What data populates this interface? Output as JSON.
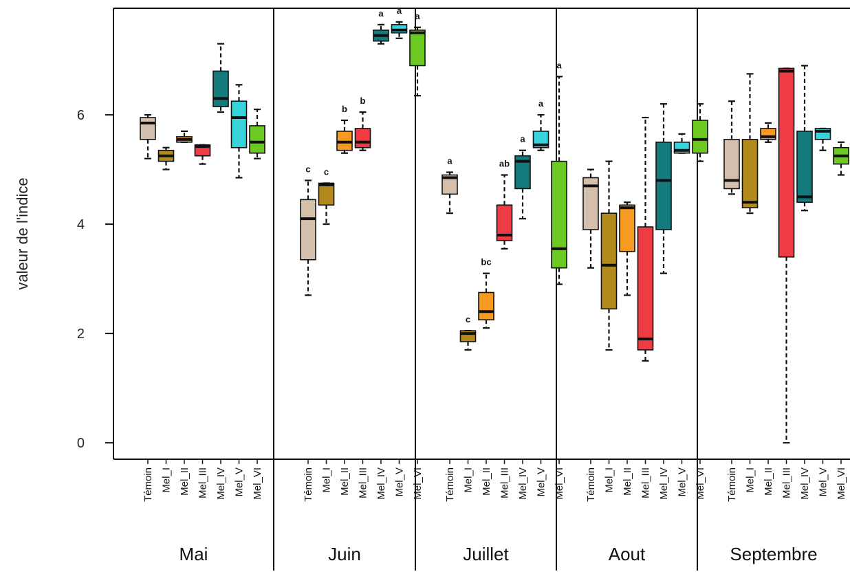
{
  "chart_data": {
    "type": "boxplot",
    "ylabel": "valeur de l'indice",
    "yticks": [
      0,
      2,
      4,
      6
    ],
    "ylim": [
      -0.3,
      7.95
    ],
    "categories": [
      "Témoin",
      "Mel_I",
      "Mel_II",
      "Mel_III",
      "Mel_IV",
      "Mel_V",
      "Mel_VI"
    ],
    "colors": {
      "Témoin": "#d3bfab",
      "Mel_I": "#b28a1e",
      "Mel_II": "#f79a22",
      "Mel_III": "#ef3b43",
      "Mel_IV": "#157a7c",
      "Mel_V": "#37d4dc",
      "Mel_VI": "#6cc922"
    },
    "panels": [
      {
        "month": "Mai",
        "boxes": [
          {
            "category": "Témoin",
            "whisker_low": 5.2,
            "q1": 5.55,
            "median": 5.85,
            "q3": 5.95,
            "whisker_high": 6.0,
            "letter": ""
          },
          {
            "category": "Mel_I",
            "whisker_low": 5.0,
            "q1": 5.15,
            "median": 5.25,
            "q3": 5.35,
            "whisker_high": 5.4,
            "letter": ""
          },
          {
            "category": "Mel_II",
            "whisker_low": 5.5,
            "q1": 5.5,
            "median": 5.55,
            "q3": 5.6,
            "whisker_high": 5.7,
            "letter": ""
          },
          {
            "category": "Mel_III",
            "whisker_low": 5.1,
            "q1": 5.25,
            "median": 5.42,
            "q3": 5.45,
            "whisker_high": 5.45,
            "letter": ""
          },
          {
            "category": "Mel_IV",
            "whisker_low": 6.05,
            "q1": 6.15,
            "median": 6.3,
            "q3": 6.8,
            "whisker_high": 7.3,
            "letter": ""
          },
          {
            "category": "Mel_V",
            "whisker_low": 4.85,
            "q1": 5.4,
            "median": 5.95,
            "q3": 6.25,
            "whisker_high": 6.55,
            "letter": ""
          },
          {
            "category": "Mel_VI",
            "whisker_low": 5.2,
            "q1": 5.3,
            "median": 5.5,
            "q3": 5.8,
            "whisker_high": 6.1,
            "letter": ""
          }
        ]
      },
      {
        "month": "Juin",
        "boxes": [
          {
            "category": "Témoin",
            "whisker_low": 2.7,
            "q1": 3.35,
            "median": 4.1,
            "q3": 4.45,
            "whisker_high": 4.8,
            "letter": "c"
          },
          {
            "category": "Mel_I",
            "whisker_low": 4.0,
            "q1": 4.35,
            "median": 4.72,
            "q3": 4.75,
            "whisker_high": 4.75,
            "letter": "c"
          },
          {
            "category": "Mel_II",
            "whisker_low": 5.3,
            "q1": 5.35,
            "median": 5.5,
            "q3": 5.7,
            "whisker_high": 5.9,
            "letter": "b"
          },
          {
            "category": "Mel_III",
            "whisker_low": 5.35,
            "q1": 5.4,
            "median": 5.5,
            "q3": 5.75,
            "whisker_high": 6.05,
            "letter": "b"
          },
          {
            "category": "Mel_IV",
            "whisker_low": 7.3,
            "q1": 7.35,
            "median": 7.45,
            "q3": 7.55,
            "whisker_high": 7.65,
            "letter": "a"
          },
          {
            "category": "Mel_V",
            "whisker_low": 7.4,
            "q1": 7.5,
            "median": 7.55,
            "q3": 7.65,
            "whisker_high": 7.7,
            "letter": "a"
          },
          {
            "category": "Mel_VI",
            "whisker_low": 6.35,
            "q1": 6.9,
            "median": 7.5,
            "q3": 7.55,
            "whisker_high": 7.6,
            "letter": "a"
          }
        ]
      },
      {
        "month": "Juillet",
        "boxes": [
          {
            "category": "Témoin",
            "whisker_low": 4.2,
            "q1": 4.55,
            "median": 4.85,
            "q3": 4.9,
            "whisker_high": 4.95,
            "letter": "a"
          },
          {
            "category": "Mel_I",
            "whisker_low": 1.7,
            "q1": 1.85,
            "median": 2.0,
            "q3": 2.05,
            "whisker_high": 2.05,
            "letter": "c"
          },
          {
            "category": "Mel_II",
            "whisker_low": 2.1,
            "q1": 2.25,
            "median": 2.4,
            "q3": 2.75,
            "whisker_high": 3.1,
            "letter": "bc"
          },
          {
            "category": "Mel_III",
            "whisker_low": 3.55,
            "q1": 3.7,
            "median": 3.8,
            "q3": 4.35,
            "whisker_high": 4.9,
            "letter": "ab"
          },
          {
            "category": "Mel_IV",
            "whisker_low": 4.1,
            "q1": 4.65,
            "median": 5.15,
            "q3": 5.25,
            "whisker_high": 5.35,
            "letter": "a"
          },
          {
            "category": "Mel_V",
            "whisker_low": 5.35,
            "q1": 5.4,
            "median": 5.45,
            "q3": 5.7,
            "whisker_high": 6.0,
            "letter": "a"
          },
          {
            "category": "Mel_VI",
            "whisker_low": 2.9,
            "q1": 3.2,
            "median": 3.55,
            "q3": 5.15,
            "whisker_high": 6.7,
            "letter": "a"
          }
        ]
      },
      {
        "month": "Aout",
        "boxes": [
          {
            "category": "Témoin",
            "whisker_low": 3.2,
            "q1": 3.9,
            "median": 4.7,
            "q3": 4.85,
            "whisker_high": 5.0,
            "letter": ""
          },
          {
            "category": "Mel_I",
            "whisker_low": 1.7,
            "q1": 2.45,
            "median": 3.25,
            "q3": 4.2,
            "whisker_high": 5.15,
            "letter": ""
          },
          {
            "category": "Mel_II",
            "whisker_low": 2.7,
            "q1": 3.5,
            "median": 4.3,
            "q3": 4.35,
            "whisker_high": 4.4,
            "letter": ""
          },
          {
            "category": "Mel_III",
            "whisker_low": 1.5,
            "q1": 1.7,
            "median": 1.9,
            "q3": 3.95,
            "whisker_high": 5.95,
            "letter": ""
          },
          {
            "category": "Mel_IV",
            "whisker_low": 3.1,
            "q1": 3.9,
            "median": 4.8,
            "q3": 5.5,
            "whisker_high": 6.2,
            "letter": ""
          },
          {
            "category": "Mel_V",
            "whisker_low": 5.3,
            "q1": 5.3,
            "median": 5.35,
            "q3": 5.5,
            "whisker_high": 5.65,
            "letter": ""
          },
          {
            "category": "Mel_VI",
            "whisker_low": 5.15,
            "q1": 5.3,
            "median": 5.55,
            "q3": 5.9,
            "whisker_high": 6.2,
            "letter": ""
          }
        ]
      },
      {
        "month": "Septembre",
        "boxes": [
          {
            "category": "Témoin",
            "whisker_low": 4.55,
            "q1": 4.65,
            "median": 4.8,
            "q3": 5.55,
            "whisker_high": 6.25,
            "letter": ""
          },
          {
            "category": "Mel_I",
            "whisker_low": 4.2,
            "q1": 4.3,
            "median": 4.4,
            "q3": 5.55,
            "whisker_high": 6.75,
            "letter": ""
          },
          {
            "category": "Mel_II",
            "whisker_low": 5.5,
            "q1": 5.55,
            "median": 5.6,
            "q3": 5.75,
            "whisker_high": 5.85,
            "letter": ""
          },
          {
            "category": "Mel_III",
            "whisker_low": 0.0,
            "q1": 3.4,
            "median": 6.8,
            "q3": 6.85,
            "whisker_high": 6.85,
            "letter": ""
          },
          {
            "category": "Mel_IV",
            "whisker_low": 4.25,
            "q1": 4.4,
            "median": 4.5,
            "q3": 5.7,
            "whisker_high": 6.9,
            "letter": ""
          },
          {
            "category": "Mel_V",
            "whisker_low": 5.35,
            "q1": 5.55,
            "median": 5.7,
            "q3": 5.75,
            "whisker_high": 5.75,
            "letter": ""
          },
          {
            "category": "Mel_VI",
            "whisker_low": 4.9,
            "q1": 5.1,
            "median": 5.25,
            "q3": 5.4,
            "whisker_high": 5.5,
            "letter": ""
          }
        ]
      }
    ]
  }
}
